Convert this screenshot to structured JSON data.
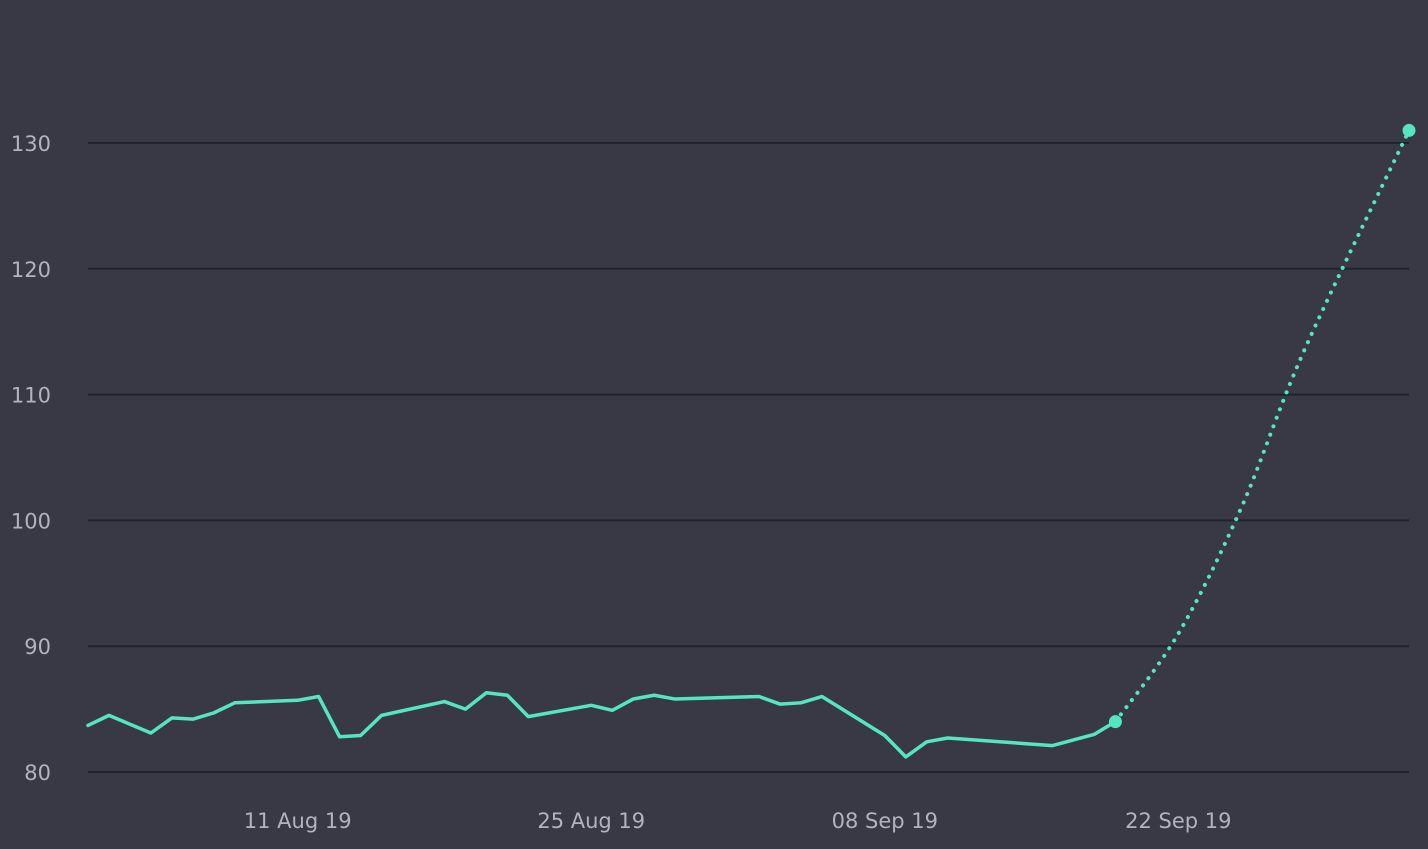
{
  "chart_data": {
    "type": "line",
    "title": "",
    "xlabel": "",
    "ylabel": "",
    "ylim": [
      80,
      130
    ],
    "xlim": [
      "2019-08-01",
      "2019-10-03"
    ],
    "grid": true,
    "legend": "none",
    "yticks": [
      80,
      90,
      100,
      110,
      120,
      130
    ],
    "xticks": [
      {
        "date": "2019-08-11",
        "label": "11 Aug 19"
      },
      {
        "date": "2019-08-25",
        "label": "25 Aug 19"
      },
      {
        "date": "2019-09-08",
        "label": "08 Sep 19"
      },
      {
        "date": "2019-09-22",
        "label": "22 Sep 19"
      }
    ],
    "colors": {
      "background": "#393945",
      "line": "#55e6c1",
      "grid": "#22222b",
      "tick_text": "#b3b3bf"
    },
    "series": [
      {
        "style": "solid",
        "points": [
          [
            "2019-08-01",
            83.7
          ],
          [
            "2019-08-02",
            84.5
          ],
          [
            "2019-08-04",
            83.1
          ],
          [
            "2019-08-05",
            84.3
          ],
          [
            "2019-08-06",
            84.2
          ],
          [
            "2019-08-07",
            84.7
          ],
          [
            "2019-08-08",
            85.5
          ],
          [
            "2019-08-11",
            85.7
          ],
          [
            "2019-08-12",
            86.0
          ],
          [
            "2019-08-13",
            82.8
          ],
          [
            "2019-08-14",
            82.9
          ],
          [
            "2019-08-15",
            84.5
          ],
          [
            "2019-08-18",
            85.6
          ],
          [
            "2019-08-19",
            85.0
          ],
          [
            "2019-08-20",
            86.3
          ],
          [
            "2019-08-21",
            86.1
          ],
          [
            "2019-08-22",
            84.4
          ],
          [
            "2019-08-25",
            85.3
          ],
          [
            "2019-08-26",
            84.9
          ],
          [
            "2019-08-27",
            85.8
          ],
          [
            "2019-08-28",
            86.1
          ],
          [
            "2019-08-29",
            85.8
          ],
          [
            "2019-09-02",
            86.0
          ],
          [
            "2019-09-03",
            85.4
          ],
          [
            "2019-09-04",
            85.5
          ],
          [
            "2019-09-05",
            86.0
          ],
          [
            "2019-09-08",
            82.9
          ],
          [
            "2019-09-09",
            81.2
          ],
          [
            "2019-09-10",
            82.4
          ],
          [
            "2019-09-11",
            82.7
          ],
          [
            "2019-09-16",
            82.1
          ],
          [
            "2019-09-18",
            83.0
          ],
          [
            "2019-09-19",
            84.0
          ]
        ]
      },
      {
        "style": "dotted",
        "points": [
          [
            "2019-09-19",
            84.0
          ],
          [
            "2019-09-22",
            91.0
          ],
          [
            "2019-09-25",
            101.0
          ],
          [
            "2019-09-28",
            113.5
          ],
          [
            "2019-10-03",
            131.0
          ]
        ]
      }
    ]
  }
}
